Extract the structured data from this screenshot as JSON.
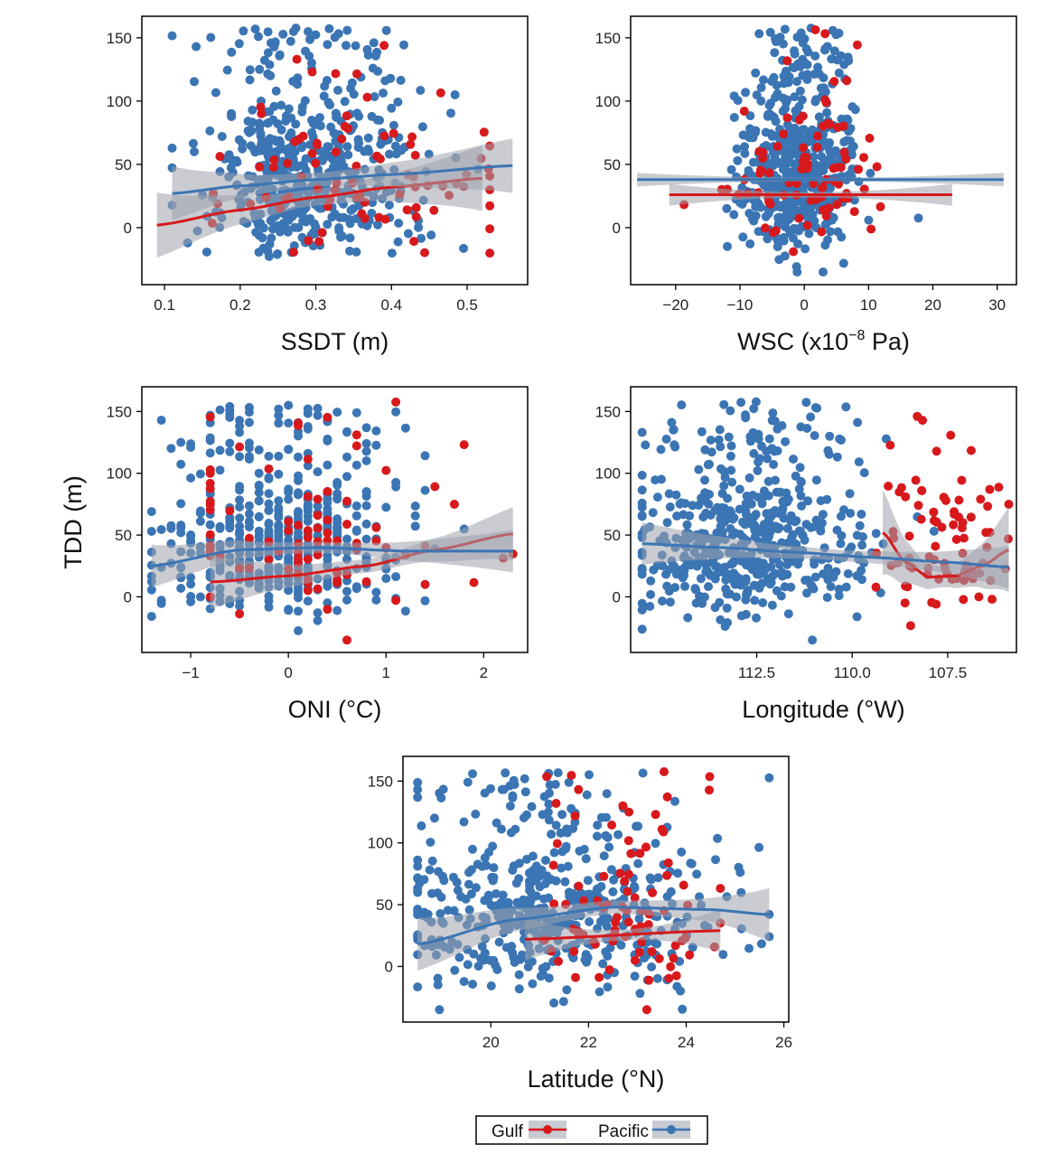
{
  "colors": {
    "gulf": "#d7191c",
    "pacific": "#3b75b4",
    "band": "#9ea3ad"
  },
  "ylabel": "TDD (m)",
  "legend": {
    "items": [
      {
        "label": "Gulf",
        "color": "#d7191c"
      },
      {
        "label": "Pacific",
        "color": "#3b75b4"
      }
    ]
  },
  "chart_data": [
    {
      "type": "scatter",
      "id": "ssdt",
      "xlabel": "SSDT (m)",
      "xlim": [
        0.07,
        0.58
      ],
      "ylim": [
        -45,
        167
      ],
      "xticks": [
        0.1,
        0.2,
        0.3,
        0.4,
        0.5
      ],
      "xtick_labels": [
        "0.1",
        "0.2",
        "0.3",
        "0.4",
        "0.5"
      ],
      "yticks": [
        0,
        50,
        100,
        150
      ],
      "ytick_labels": [
        "0",
        "50",
        "100",
        "150"
      ],
      "gen": {
        "pac": {
          "n": 520,
          "xmean": 0.29,
          "xsd": 0.065,
          "xr": [
            0.11,
            0.56
          ],
          "seed": 11
        },
        "gulf": {
          "n": 85,
          "xmean": 0.36,
          "xsd": 0.09,
          "xr": [
            0.09,
            0.53
          ],
          "seed": 12
        }
      },
      "series": [
        {
          "name": "Gulf",
          "fit": {
            "x": [
              0.09,
              0.2,
              0.3,
              0.4,
              0.52
            ],
            "y": [
              2,
              14,
              24,
              32,
              39
            ]
          },
          "band_hw": 12
        },
        {
          "name": "Pacific",
          "fit": {
            "x": [
              0.11,
              0.2,
              0.3,
              0.4,
              0.56
            ],
            "y": [
              27,
              33,
              38,
              42,
              49
            ]
          },
          "band_hw": 10
        }
      ]
    },
    {
      "type": "scatter",
      "id": "wsc",
      "xlabel": "WSC (x10",
      "xlabel_sup": "−8",
      "xlabel_tail": " Pa)",
      "xlim": [
        -27,
        33
      ],
      "ylim": [
        -45,
        167
      ],
      "xticks": [
        -20,
        -10,
        0,
        10,
        20,
        30
      ],
      "xtick_labels": [
        "−20",
        "−10",
        "0",
        "10",
        "20",
        "30"
      ],
      "yticks": [
        0,
        50,
        100,
        150
      ],
      "ytick_labels": [
        "0",
        "50",
        "100",
        "150"
      ],
      "gen": {
        "pac": {
          "n": 520,
          "xmean": -1,
          "xsd": 4.5,
          "xr": [
            -26,
            31
          ],
          "seed": 21
        },
        "gulf": {
          "n": 85,
          "xmean": 0,
          "xsd": 6,
          "xr": [
            -21,
            23
          ],
          "seed": 22
        }
      },
      "series": [
        {
          "name": "Gulf",
          "fit": {
            "x": [
              -21,
              23
            ],
            "y": [
              26,
              26
            ]
          },
          "band_hw": 4
        },
        {
          "name": "Pacific",
          "fit": {
            "x": [
              -26,
              31
            ],
            "y": [
              38,
              38
            ]
          },
          "band_hw": 2.5
        }
      ]
    },
    {
      "type": "scatter",
      "id": "oni",
      "xlabel": "ONI (°C)",
      "xlim": [
        -1.5,
        2.45
      ],
      "ylim": [
        -45,
        170
      ],
      "xticks": [
        -1,
        0,
        1,
        2
      ],
      "xtick_labels": [
        "−1",
        "0",
        "1",
        "2"
      ],
      "yticks": [
        0,
        50,
        100,
        150
      ],
      "ytick_labels": [
        "0",
        "50",
        "100",
        "150"
      ],
      "gen": {
        "pac": {
          "n": 520,
          "xmean": -0.1,
          "xsd": 0.6,
          "xr": [
            -1.4,
            2.3
          ],
          "seed": 31,
          "discrete": 0.1
        },
        "gulf": {
          "n": 85,
          "xmean": 0.3,
          "xsd": 0.9,
          "xr": [
            -0.8,
            2.3
          ],
          "seed": 32,
          "discrete": 0.1
        }
      },
      "series": [
        {
          "name": "Gulf",
          "fit": {
            "x": [
              -0.8,
              0,
              0.8,
              1.5,
              2.3
            ],
            "y": [
              12,
              17,
              25,
              38,
              51
            ]
          },
          "band_hw": 10
        },
        {
          "name": "Pacific",
          "fit": {
            "x": [
              -1.4,
              -0.5,
              0.3,
              1.2,
              2.3
            ],
            "y": [
              25,
              38,
              40,
              37,
              37
            ]
          },
          "band_hw": 8
        }
      ]
    },
    {
      "type": "scatter",
      "id": "lon",
      "xlabel": "Longitude (°W)",
      "xlim": [
        115.8,
        105.7
      ],
      "ylim": [
        -45,
        170
      ],
      "xticks": [
        112.5,
        110.0,
        107.5
      ],
      "xtick_labels": [
        "112.5",
        "110.0",
        "107.5"
      ],
      "yticks": [
        0,
        50,
        100,
        150
      ],
      "ytick_labels": [
        "0",
        "50",
        "100",
        "150"
      ],
      "gen": {
        "pac": {
          "n": 520,
          "xmean": 112.8,
          "xsd": 1.6,
          "xr": [
            105.9,
            115.5
          ],
          "seed": 41
        },
        "gulf": {
          "n": 85,
          "xmean": 107.5,
          "xsd": 0.9,
          "xr": [
            105.9,
            109.5
          ],
          "seed": 42
        }
      },
      "series": [
        {
          "name": "Gulf",
          "fit": {
            "x": [
              109.2,
              108.6,
              108.0,
              107.3,
              106.6,
              105.9
            ],
            "y": [
              52,
              28,
              16,
              17,
              25,
              38
            ]
          },
          "band_hw": 16
        },
        {
          "name": "Pacific",
          "fit": {
            "x": [
              115.5,
              113.5,
              111.5,
              109.5,
              107.5,
              105.9
            ],
            "y": [
              43,
              40,
              36,
              32,
              28,
              24
            ]
          },
          "band_hw": 8
        }
      ]
    },
    {
      "type": "scatter",
      "id": "lat",
      "xlabel": "Latitude (°N)",
      "xlim": [
        18.2,
        26.1
      ],
      "ylim": [
        -45,
        170
      ],
      "xticks": [
        20,
        22,
        24,
        26
      ],
      "xtick_labels": [
        "20",
        "22",
        "24",
        "26"
      ],
      "yticks": [
        0,
        50,
        100,
        150
      ],
      "ytick_labels": [
        "0",
        "50",
        "100",
        "150"
      ],
      "gen": {
        "pac": {
          "n": 520,
          "xmean": 21.2,
          "xsd": 1.6,
          "xr": [
            18.5,
            25.7
          ],
          "seed": 51
        },
        "gulf": {
          "n": 85,
          "xmean": 23,
          "xsd": 0.9,
          "xr": [
            20.7,
            24.7
          ],
          "seed": 52
        }
      },
      "series": [
        {
          "name": "Gulf",
          "fit": {
            "x": [
              20.7,
              24.7
            ],
            "y": [
              22,
              29
            ]
          },
          "band_hw": 8
        },
        {
          "name": "Pacific",
          "fit": {
            "x": [
              18.5,
              20.5,
              22.5,
              24.5,
              25.7
            ],
            "y": [
              18,
              38,
              48,
              46,
              42
            ]
          },
          "band_hw": 10
        }
      ]
    }
  ]
}
